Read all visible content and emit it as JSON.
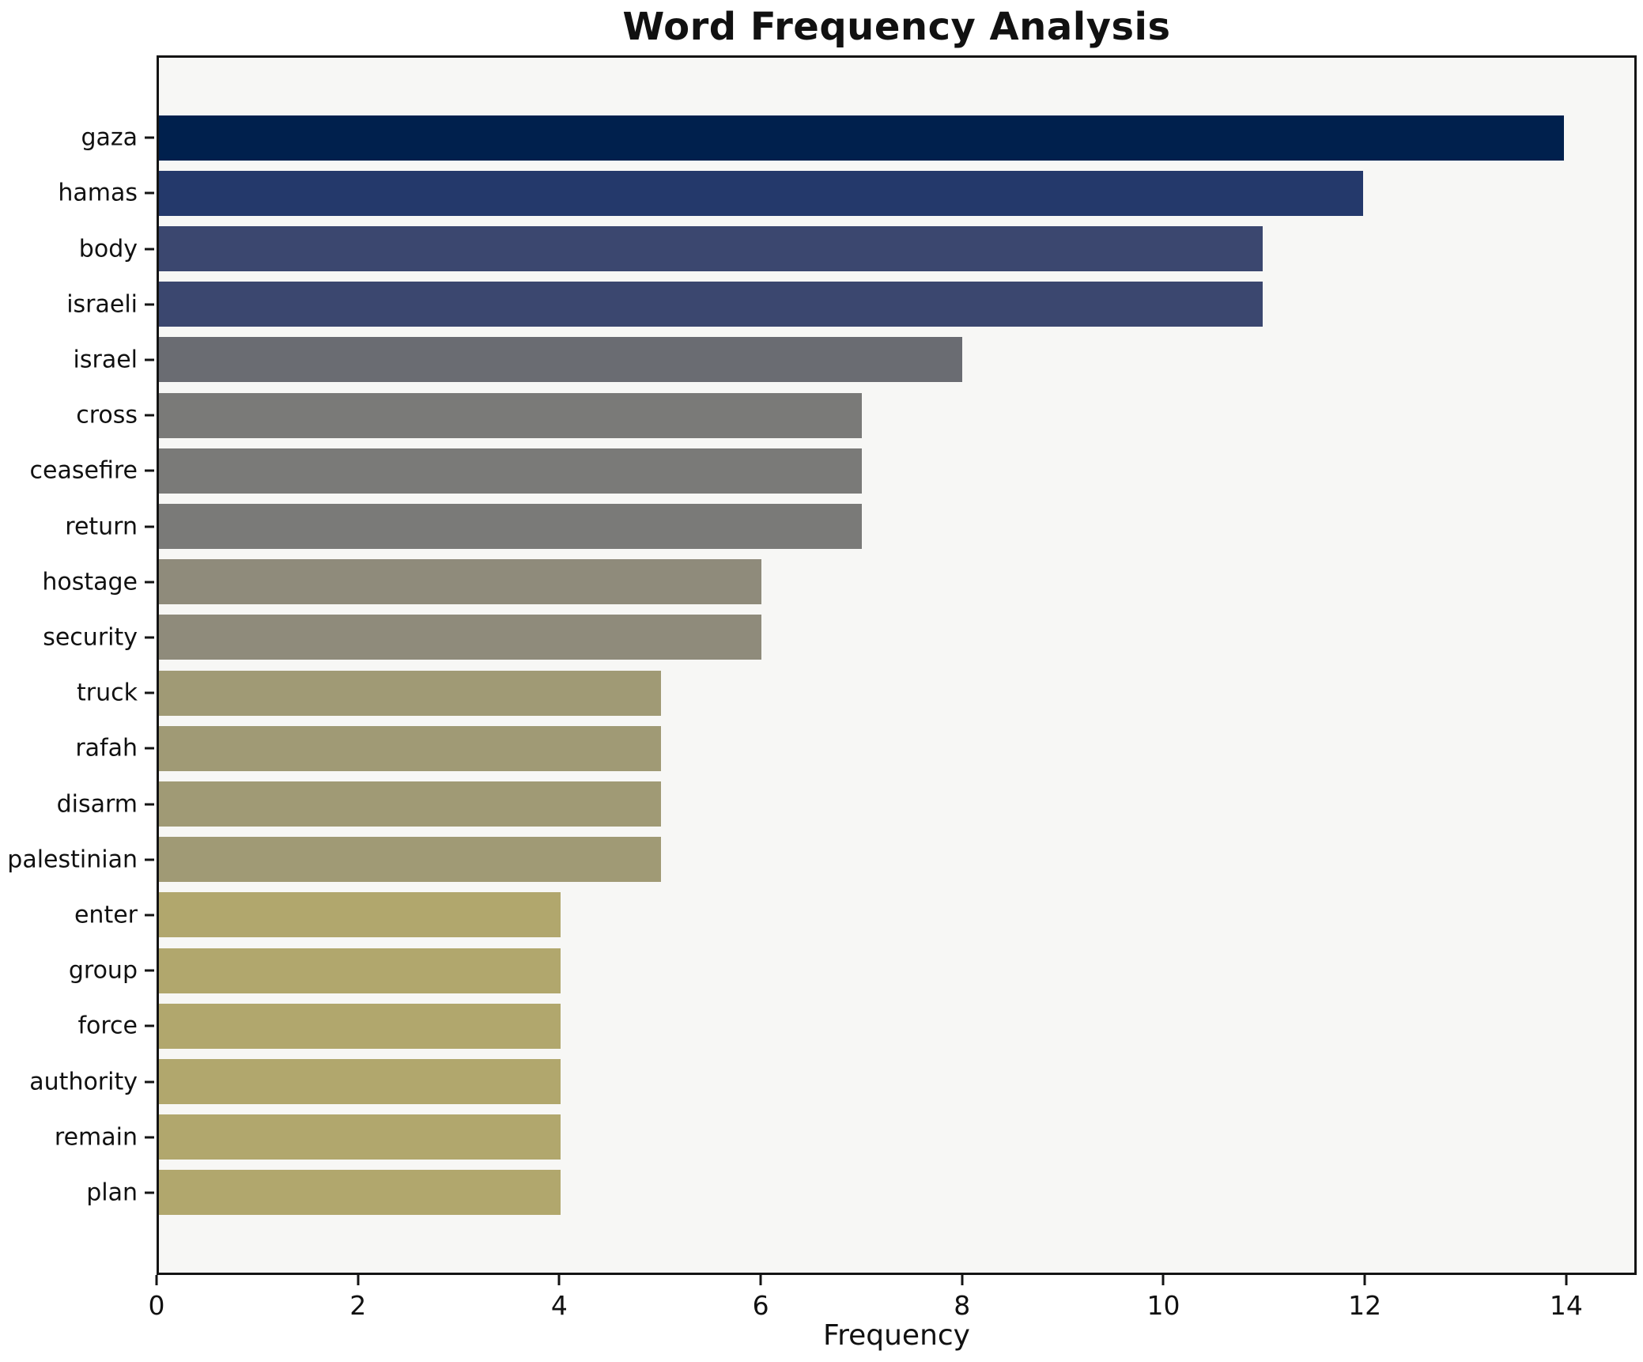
{
  "chart": {
    "title": "Word Frequency Analysis",
    "xlabel": "Frequency"
  },
  "chart_data": {
    "type": "bar",
    "orientation": "horizontal",
    "title": "Word Frequency Analysis",
    "xlabel": "Frequency",
    "ylabel": "",
    "categories": [
      "gaza",
      "hamas",
      "body",
      "israeli",
      "israel",
      "cross",
      "ceasefire",
      "return",
      "hostage",
      "security",
      "truck",
      "rafah",
      "disarm",
      "palestinian",
      "enter",
      "group",
      "force",
      "authority",
      "remain",
      "plan"
    ],
    "values": [
      14,
      12,
      11,
      11,
      8,
      7,
      7,
      7,
      6,
      6,
      5,
      5,
      5,
      5,
      4,
      4,
      4,
      4,
      4,
      4
    ],
    "bar_colors": [
      "#00204d",
      "#24396b",
      "#3b476f",
      "#3b476f",
      "#6a6c72",
      "#7a7a78",
      "#7a7a78",
      "#7a7a78",
      "#8f8b7b",
      "#8f8b7b",
      "#a09a75",
      "#a09a75",
      "#a09a75",
      "#a09a75",
      "#b1a76d",
      "#b1a76d",
      "#b1a76d",
      "#b1a76d",
      "#b1a76d",
      "#b1a76d"
    ],
    "xlim": [
      0,
      14.7
    ],
    "xticks": [
      0,
      2,
      4,
      6,
      8,
      10,
      12,
      14
    ],
    "xtick_labels": [
      "0",
      "2",
      "4",
      "6",
      "8",
      "10",
      "12",
      "14"
    ],
    "grid": false,
    "legend_position": "none",
    "plot_bg": "#f7f7f5",
    "figure_bg": "#ffffff",
    "spine_color": "#141414",
    "tick_color": "#141414",
    "text_color": "#111111"
  }
}
